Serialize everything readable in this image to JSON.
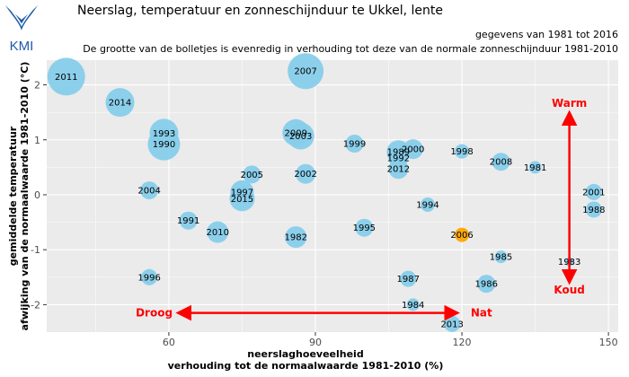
{
  "header": {
    "logo_text": "KMI",
    "title": "Neerslag, temperatuur en zonneschijnduur te Ukkel, lente",
    "subtitle1": "gegevens van 1981 tot 2016",
    "subtitle2": "De grootte van de bolletjes is evenredig in verhouding tot deze van de normale zonneschijnduur 1981-2010"
  },
  "colors": {
    "panel": "#ebebeb",
    "grid": "#ffffff",
    "bubble": "#87ceeb",
    "highlight": "#ffa500",
    "arrow": "#ff0000"
  },
  "chart_data": {
    "type": "scatter",
    "xlabel": [
      "neerslaghoeveelheid",
      "verhouding tot de normaalwaarde 1981-2010 (%)"
    ],
    "ylabel": [
      "gemiddelde temperatuur",
      "afwijking van de normaalwaarde 1981-2010 (°C)"
    ],
    "xlim": [
      35,
      152
    ],
    "ylim": [
      -2.5,
      2.45
    ],
    "x_ticks": [
      60,
      90,
      120,
      150
    ],
    "y_ticks": [
      -2,
      -1,
      0,
      1,
      2
    ],
    "grid": true,
    "points": [
      {
        "year": "2011",
        "x": 39,
        "y": 2.15,
        "r": 21
      },
      {
        "year": "2007",
        "x": 88,
        "y": 2.25,
        "r": 20
      },
      {
        "year": "2014",
        "x": 50,
        "y": 1.68,
        "r": 16
      },
      {
        "year": "1993",
        "x": 59,
        "y": 1.12,
        "r": 16
      },
      {
        "year": "1990",
        "x": 59,
        "y": 0.92,
        "r": 18
      },
      {
        "year": "2009",
        "x": 86,
        "y": 1.13,
        "r": 15
      },
      {
        "year": "2003",
        "x": 87,
        "y": 1.07,
        "r": 15
      },
      {
        "year": "1999",
        "x": 98,
        "y": 0.93,
        "r": 10
      },
      {
        "year": "1989",
        "x": 107,
        "y": 0.78,
        "r": 13
      },
      {
        "year": "2000",
        "x": 110,
        "y": 0.83,
        "r": 11
      },
      {
        "year": "1992",
        "x": 107,
        "y": 0.67,
        "r": 11
      },
      {
        "year": "1998",
        "x": 120,
        "y": 0.79,
        "r": 8
      },
      {
        "year": "2008",
        "x": 128,
        "y": 0.6,
        "r": 10
      },
      {
        "year": "1981",
        "x": 135,
        "y": 0.5,
        "r": 7
      },
      {
        "year": "2012",
        "x": 107,
        "y": 0.47,
        "r": 11
      },
      {
        "year": "2005",
        "x": 77,
        "y": 0.37,
        "r": 10
      },
      {
        "year": "2002",
        "x": 88,
        "y": 0.38,
        "r": 11
      },
      {
        "year": "2004",
        "x": 56,
        "y": 0.08,
        "r": 10
      },
      {
        "year": "1997",
        "x": 75,
        "y": 0.05,
        "r": 13
      },
      {
        "year": "2015",
        "x": 75,
        "y": -0.07,
        "r": 14
      },
      {
        "year": "1994",
        "x": 113,
        "y": -0.18,
        "r": 8
      },
      {
        "year": "2001",
        "x": 147,
        "y": 0.05,
        "r": 9
      },
      {
        "year": "1988",
        "x": 147,
        "y": -0.27,
        "r": 9
      },
      {
        "year": "1991",
        "x": 64,
        "y": -0.47,
        "r": 10
      },
      {
        "year": "2010",
        "x": 70,
        "y": -0.68,
        "r": 12
      },
      {
        "year": "1995",
        "x": 100,
        "y": -0.6,
        "r": 10
      },
      {
        "year": "1982",
        "x": 86,
        "y": -0.77,
        "r": 12
      },
      {
        "year": "2006",
        "x": 120,
        "y": -0.73,
        "r": 8,
        "highlight": true
      },
      {
        "year": "1985",
        "x": 128,
        "y": -1.13,
        "r": 7
      },
      {
        "year": "1983",
        "x": 142,
        "y": -1.22,
        "r": 5
      },
      {
        "year": "1996",
        "x": 56,
        "y": -1.5,
        "r": 9
      },
      {
        "year": "1987",
        "x": 109,
        "y": -1.53,
        "r": 9
      },
      {
        "year": "1986",
        "x": 125,
        "y": -1.62,
        "r": 10
      },
      {
        "year": "1984",
        "x": 110,
        "y": -2.0,
        "r": 7
      },
      {
        "year": "2013",
        "x": 118,
        "y": -2.35,
        "r": 9
      }
    ],
    "annotations": {
      "warm": "Warm",
      "koud": "Koud",
      "droog": "Droog",
      "nat": "Nat"
    }
  }
}
